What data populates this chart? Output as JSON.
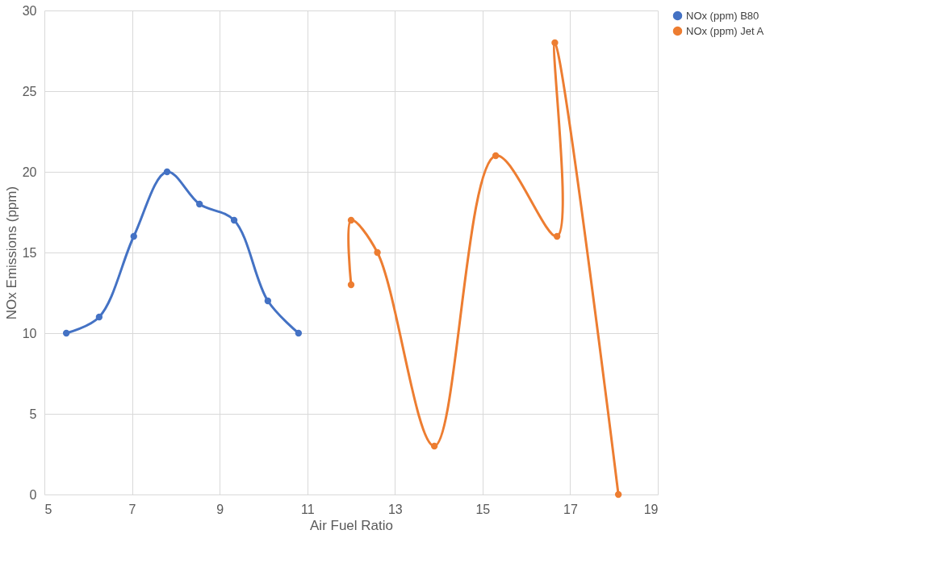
{
  "chart_data": {
    "type": "line",
    "xlabel": "Air Fuel Ratio",
    "ylabel": "NOx Emissions (ppm)",
    "xlim": [
      5,
      19
    ],
    "xticks": [
      5,
      7,
      9,
      11,
      13,
      15,
      17,
      19
    ],
    "ylim": [
      0,
      30
    ],
    "yticks": [
      0,
      5,
      10,
      15,
      20,
      25,
      30
    ],
    "grid": true,
    "legend": "right",
    "marker": "circle",
    "series": [
      {
        "name": "NOx (ppm) B80",
        "color": "#4472c4",
        "x": [
          5.5,
          6.25,
          7.04,
          7.8,
          8.54,
          9.33,
          10.1,
          10.8
        ],
        "values": [
          10,
          11,
          16,
          20,
          18,
          17,
          12,
          10
        ]
      },
      {
        "name": "NOx (ppm) Jet A",
        "color": "#ed7d31",
        "x": [
          12.0,
          12.0,
          12.6,
          13.9,
          15.3,
          16.7,
          16.65,
          18.1
        ],
        "values": [
          13,
          17,
          15,
          3,
          21,
          16,
          28,
          0
        ]
      }
    ]
  }
}
